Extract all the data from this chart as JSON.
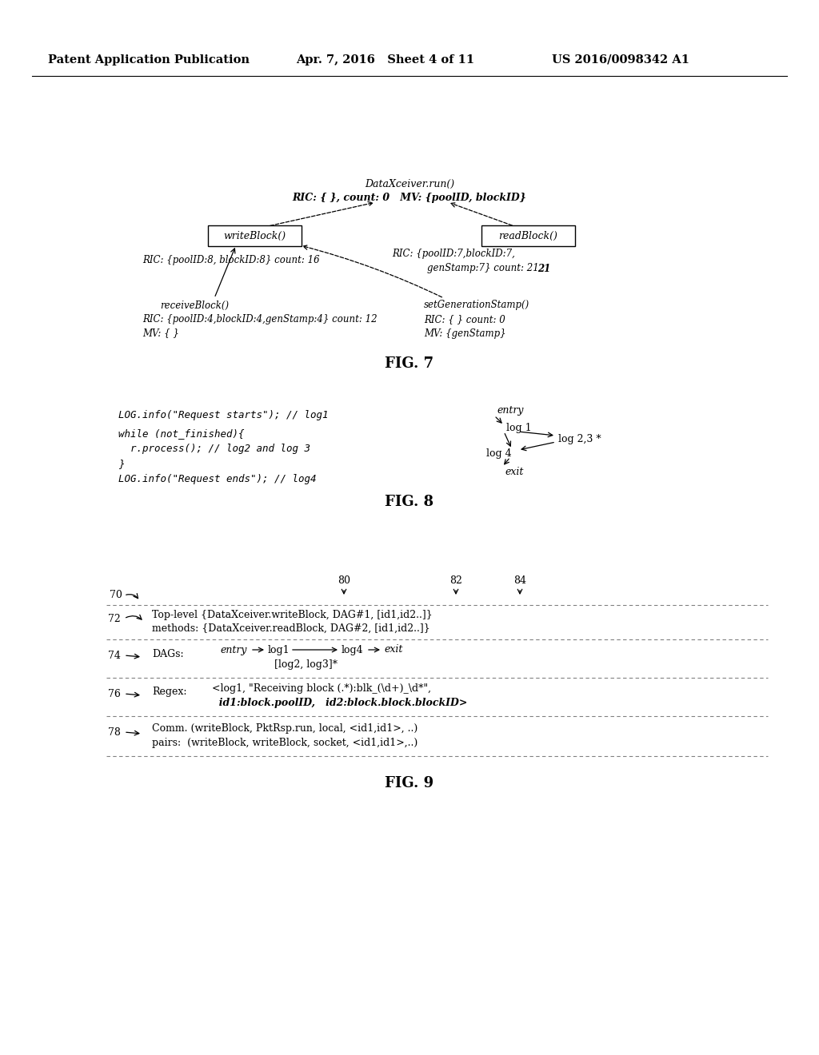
{
  "bg_color": "#ffffff",
  "header_left": "Patent Application Publication",
  "header_mid": "Apr. 7, 2016   Sheet 4 of 11",
  "header_right": "US 2016/0098342 A1"
}
